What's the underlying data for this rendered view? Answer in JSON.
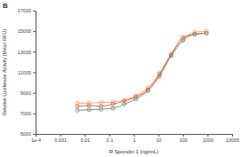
{
  "chart_data": {
    "type": "line",
    "title": "B",
    "x_label": "R Spondin 1 (ng/mL)",
    "y_label": "Relative Luciferase Activity (Mean RFU)",
    "log": "x",
    "grid": false,
    "marker": "circle",
    "x": [
      0.005,
      0.015,
      0.046,
      0.14,
      0.41,
      1.2,
      3.7,
      11,
      33,
      100,
      300,
      900
    ],
    "series": [
      {
        "color": "#f2a27e",
        "values": [
          8000,
          8000,
          8050,
          8100,
          8300,
          8700,
          9500,
          10900,
          12800,
          14200,
          14900,
          15000
        ]
      },
      {
        "color": "#e4694a",
        "values": [
          7700,
          7750,
          7700,
          7900,
          8200,
          8600,
          9300,
          10800,
          12700,
          14400,
          14700,
          14800
        ]
      },
      {
        "color": "#7a8f78",
        "values": [
          7300,
          7350,
          7400,
          7500,
          7900,
          8400,
          9200,
          10600,
          12600,
          14100,
          14700,
          14800
        ]
      }
    ],
    "xlim": [
      0.0001,
      10000
    ],
    "xticks": [
      {
        "value": 0.0001,
        "label": "1e-4"
      },
      0.001,
      0.01,
      0.1,
      1,
      10,
      100,
      1000,
      10000
    ],
    "ylim": [
      5000,
      17000
    ],
    "yticks": [
      5000,
      7000,
      9000,
      11000,
      13000,
      15000,
      17000
    ]
  }
}
